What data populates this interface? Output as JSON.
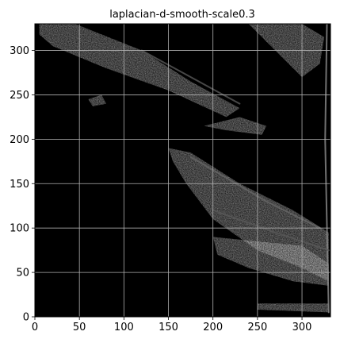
{
  "chart_data": {
    "type": "heatmap",
    "title": "laplacian-d-smooth-scale0.3",
    "xlabel": "",
    "ylabel": "",
    "xlim": [
      0,
      332
    ],
    "ylim": [
      0,
      330
    ],
    "x_ticks": [
      0,
      50,
      100,
      150,
      200,
      250,
      300
    ],
    "y_ticks": [
      0,
      50,
      100,
      150,
      200,
      250,
      300
    ],
    "grid": true,
    "colormap": "gray",
    "background_color": "#000000",
    "grid_color": "#b0b0b0",
    "image_description": "Edge magnitude image: mostly black with faint gray textured edge regions",
    "bright_regions": [
      {
        "name": "top-left-band",
        "polygon": [
          [
            5,
            330
          ],
          [
            45,
            330
          ],
          [
            120,
            300
          ],
          [
            175,
            265
          ],
          [
            230,
            235
          ],
          [
            215,
            225
          ],
          [
            150,
            255
          ],
          [
            80,
            280
          ],
          [
            20,
            305
          ],
          [
            5,
            318
          ]
        ],
        "intensity": 0.28
      },
      {
        "name": "top-right-band",
        "polygon": [
          [
            240,
            330
          ],
          [
            300,
            330
          ],
          [
            325,
            315
          ],
          [
            320,
            285
          ],
          [
            300,
            270
          ],
          [
            270,
            300
          ]
        ],
        "intensity": 0.22
      },
      {
        "name": "diagonal-band",
        "polygon": [
          [
            150,
            190
          ],
          [
            175,
            185
          ],
          [
            230,
            150
          ],
          [
            290,
            120
          ],
          [
            330,
            95
          ],
          [
            330,
            40
          ],
          [
            300,
            55
          ],
          [
            250,
            75
          ],
          [
            200,
            110
          ],
          [
            170,
            150
          ],
          [
            155,
            175
          ]
        ],
        "intensity": 0.3
      },
      {
        "name": "lower-right-band",
        "polygon": [
          [
            200,
            90
          ],
          [
            250,
            85
          ],
          [
            300,
            80
          ],
          [
            330,
            60
          ],
          [
            330,
            35
          ],
          [
            290,
            40
          ],
          [
            240,
            55
          ],
          [
            205,
            70
          ]
        ],
        "intensity": 0.25
      },
      {
        "name": "bottom-strip",
        "polygon": [
          [
            250,
            15
          ],
          [
            330,
            15
          ],
          [
            330,
            5
          ],
          [
            250,
            8
          ]
        ],
        "intensity": 0.2
      },
      {
        "name": "small-mark-left",
        "polygon": [
          [
            60,
            245
          ],
          [
            75,
            250
          ],
          [
            80,
            240
          ],
          [
            65,
            237
          ]
        ],
        "intensity": 0.25
      },
      {
        "name": "mid-edge",
        "polygon": [
          [
            190,
            215
          ],
          [
            230,
            225
          ],
          [
            260,
            215
          ],
          [
            255,
            205
          ],
          [
            215,
            210
          ]
        ],
        "intensity": 0.2
      }
    ],
    "bright_streaks": [
      {
        "name": "right-edge-streak",
        "points": [
          [
            328,
            330
          ],
          [
            326,
            200
          ],
          [
            330,
            5
          ]
        ],
        "intensity": 0.55
      },
      {
        "name": "diag-streak-1",
        "points": [
          [
            120,
            300
          ],
          [
            230,
            240
          ]
        ],
        "intensity": 0.35
      },
      {
        "name": "diag-streak-2",
        "points": [
          [
            175,
            180
          ],
          [
            260,
            130
          ],
          [
            320,
            100
          ]
        ],
        "intensity": 0.4
      },
      {
        "name": "diag-streak-3",
        "points": [
          [
            200,
            120
          ],
          [
            270,
            95
          ],
          [
            330,
            75
          ]
        ],
        "intensity": 0.35
      }
    ]
  }
}
